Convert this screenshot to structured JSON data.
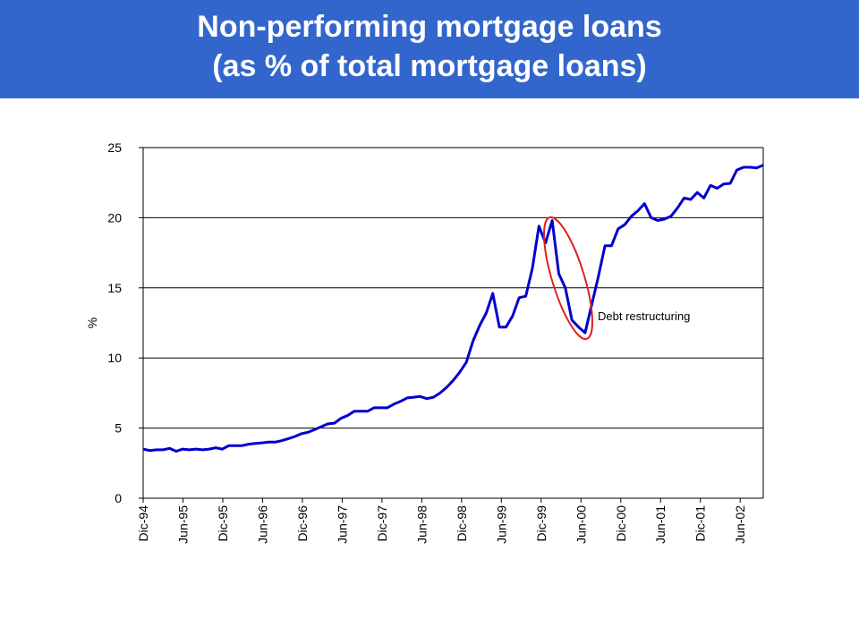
{
  "header": {
    "title_line1": "Non-performing mortgage loans",
    "title_line2": "(as % of total mortgage loans)"
  },
  "chart_data": {
    "type": "line",
    "title": "Non-performing mortgage loans (as % of total mortgage loans)",
    "xlabel": "",
    "ylabel": "%",
    "ylim": [
      0,
      25
    ],
    "yticks": [
      0,
      5,
      10,
      15,
      20,
      25
    ],
    "grid": true,
    "x_tick_labels": [
      "Dic-94",
      "Jun-95",
      "Dic-95",
      "Jun-96",
      "Dic-96",
      "Jun-97",
      "Dic-97",
      "Jun-98",
      "Dic-98",
      "Jun-99",
      "Dic-99",
      "Jun-00",
      "Dic-00",
      "Jun-01",
      "Dic-01",
      "Jun-02"
    ],
    "x_start": "Dic-94",
    "x_end": "Oct-02",
    "series": [
      {
        "name": "",
        "color": "#0000cc",
        "values": [
          3.5,
          3.4,
          3.45,
          3.45,
          3.55,
          3.35,
          3.5,
          3.45,
          3.5,
          3.45,
          3.5,
          3.6,
          3.5,
          3.75,
          3.75,
          3.75,
          3.85,
          3.9,
          3.95,
          4.0,
          4.0,
          4.1,
          4.25,
          4.4,
          4.6,
          4.7,
          4.9,
          5.1,
          5.3,
          5.35,
          5.7,
          5.9,
          6.2,
          6.2,
          6.2,
          6.45,
          6.45,
          6.45,
          6.7,
          6.9,
          7.15,
          7.2,
          7.25,
          7.1,
          7.2,
          7.5,
          7.9,
          8.4,
          9.0,
          9.7,
          11.2,
          12.3,
          13.2,
          14.6,
          12.2,
          12.2,
          13.0,
          14.3,
          14.4,
          16.4,
          19.4,
          18.2,
          19.8,
          16.0,
          15.0,
          12.7,
          12.2,
          11.8,
          13.8,
          15.8,
          18.0,
          18.0,
          19.2,
          19.5,
          20.1,
          20.5,
          21.0,
          20.0,
          19.8,
          19.9,
          20.1,
          20.7,
          21.4,
          21.3,
          21.8,
          21.4,
          22.3,
          22.1,
          22.4,
          22.45,
          23.4,
          23.6,
          23.6,
          23.55,
          23.75
        ]
      }
    ],
    "annotation": {
      "text": "Debt restructuring",
      "ellipse_color": "#e02020"
    }
  }
}
